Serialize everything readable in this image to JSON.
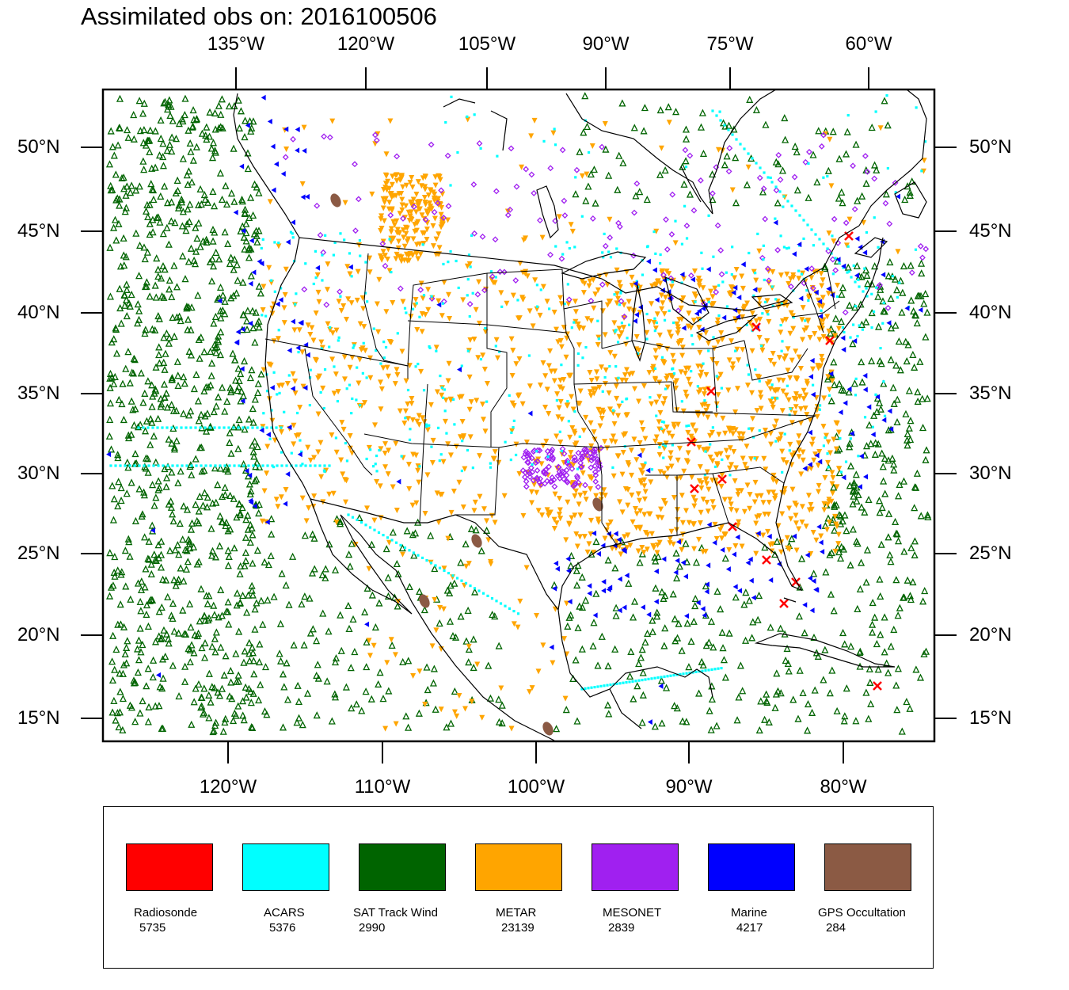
{
  "title": "Assimilated obs on: 2016100506",
  "axes": {
    "top_lon_labels": [
      "135°W",
      "120°W",
      "105°W",
      "90°W",
      "75°W",
      "60°W"
    ],
    "bottom_lon_labels": [
      "120°W",
      "110°W",
      "100°W",
      "90°W",
      "80°W"
    ],
    "left_lat_labels": [
      "50°N",
      "45°N",
      "40°N",
      "35°N",
      "30°N",
      "25°N",
      "20°N",
      "15°N"
    ],
    "right_lat_labels": [
      "50°N",
      "45°N",
      "40°N",
      "35°N",
      "30°N",
      "25°N",
      "20°N",
      "15°N"
    ]
  },
  "legend": [
    {
      "label": "Radiosonde",
      "count": "5735",
      "color": "#ff0000",
      "marker": "x"
    },
    {
      "label": "ACARS",
      "count": "5376",
      "color": "#00ffff",
      "marker": "square"
    },
    {
      "label": "SAT Track Wind",
      "count": "2990",
      "color": "#006400",
      "marker": "triangle-up"
    },
    {
      "label": "METAR",
      "count": "23139",
      "color": "#ffa500",
      "marker": "triangle-down"
    },
    {
      "label": "MESONET",
      "count": "2839",
      "color": "#a020f0",
      "marker": "diamond"
    },
    {
      "label": "Marine",
      "count": "4217",
      "color": "#0000ff",
      "marker": "triangle-left"
    },
    {
      "label": "GPS Occultation",
      "count": "284",
      "color": "#8b5a44",
      "marker": "blob"
    }
  ]
}
